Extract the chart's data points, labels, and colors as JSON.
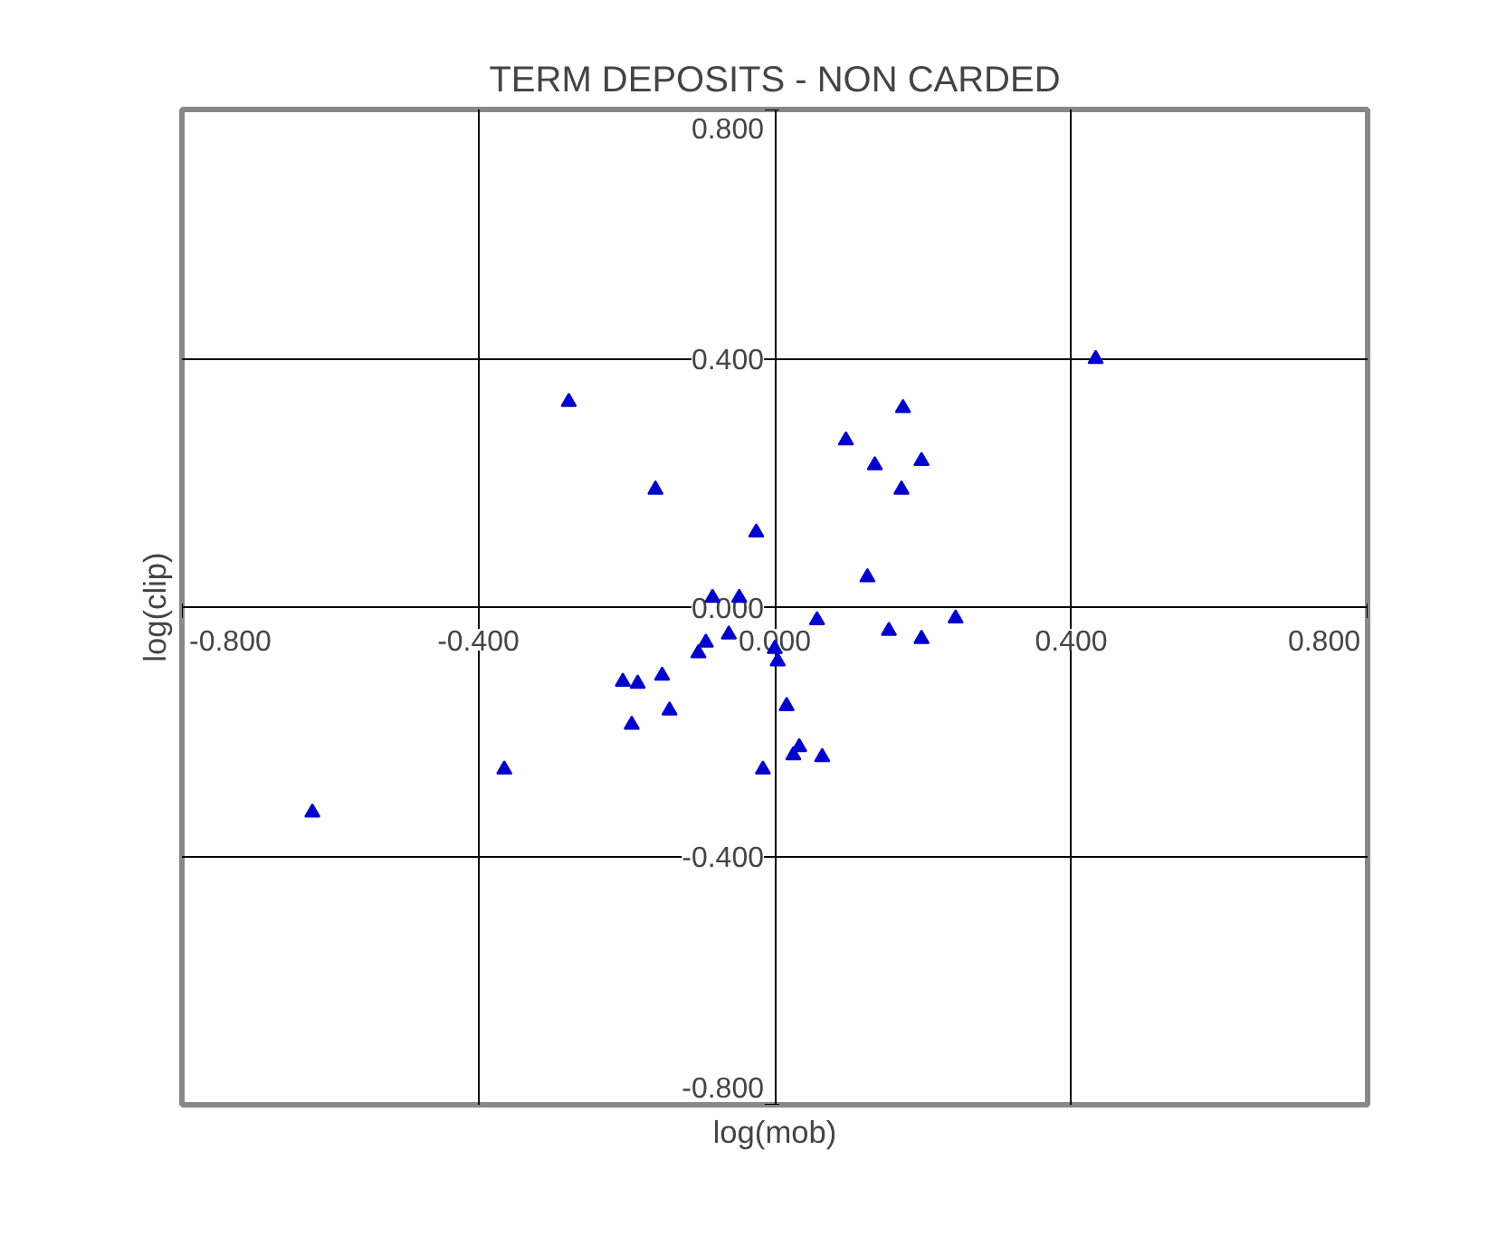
{
  "chart_data": {
    "type": "scatter",
    "title": "TERM DEPOSITS - NON CARDED",
    "xlabel": "log(mob)",
    "ylabel": "log(clip)",
    "x": [
      -0.624,
      -0.365,
      -0.278,
      -0.161,
      -0.205,
      -0.185,
      -0.193,
      -0.152,
      -0.142,
      -0.103,
      -0.093,
      -0.084,
      -0.048,
      -0.062,
      -0.025,
      -0.016,
      0.0,
      0.004,
      0.016,
      0.025,
      0.033,
      0.064,
      0.057,
      0.096,
      0.135,
      0.173,
      0.198,
      0.171,
      0.125,
      0.154,
      0.198,
      0.244,
      0.433
    ],
    "series": [
      {
        "color": "#0000cc",
        "values": [
          -0.33,
          -0.261,
          0.33,
          0.189,
          -0.12,
          -0.123,
          -0.189,
          -0.11,
          -0.166,
          -0.074,
          -0.057,
          0.015,
          0.015,
          -0.044,
          0.12,
          -0.261,
          -0.067,
          -0.087,
          -0.159,
          -0.238,
          -0.225,
          -0.241,
          -0.021,
          0.268,
          0.228,
          0.32,
          0.235,
          0.189,
          0.048,
          -0.038,
          -0.051,
          -0.018,
          0.399
        ]
      }
    ],
    "xlim": [
      -0.8,
      0.8
    ],
    "ylim": [
      -0.8,
      0.8
    ],
    "xticks": [
      {
        "value": -0.8,
        "label": "-0.800"
      },
      {
        "value": -0.4,
        "label": "-0.400"
      },
      {
        "value": 0,
        "label": "0.000"
      },
      {
        "value": 0.4,
        "label": "0.400"
      },
      {
        "value": 0.8,
        "label": "0.800"
      }
    ],
    "yticks": [
      {
        "value": -0.8,
        "label": "-0.800"
      },
      {
        "value": -0.4,
        "label": "-0.400"
      },
      {
        "value": 0,
        "label": "0.000"
      },
      {
        "value": 0.4,
        "label": "0.400"
      },
      {
        "value": 0.8,
        "label": "0.800"
      }
    ],
    "grid": true,
    "marker": "triangle"
  }
}
